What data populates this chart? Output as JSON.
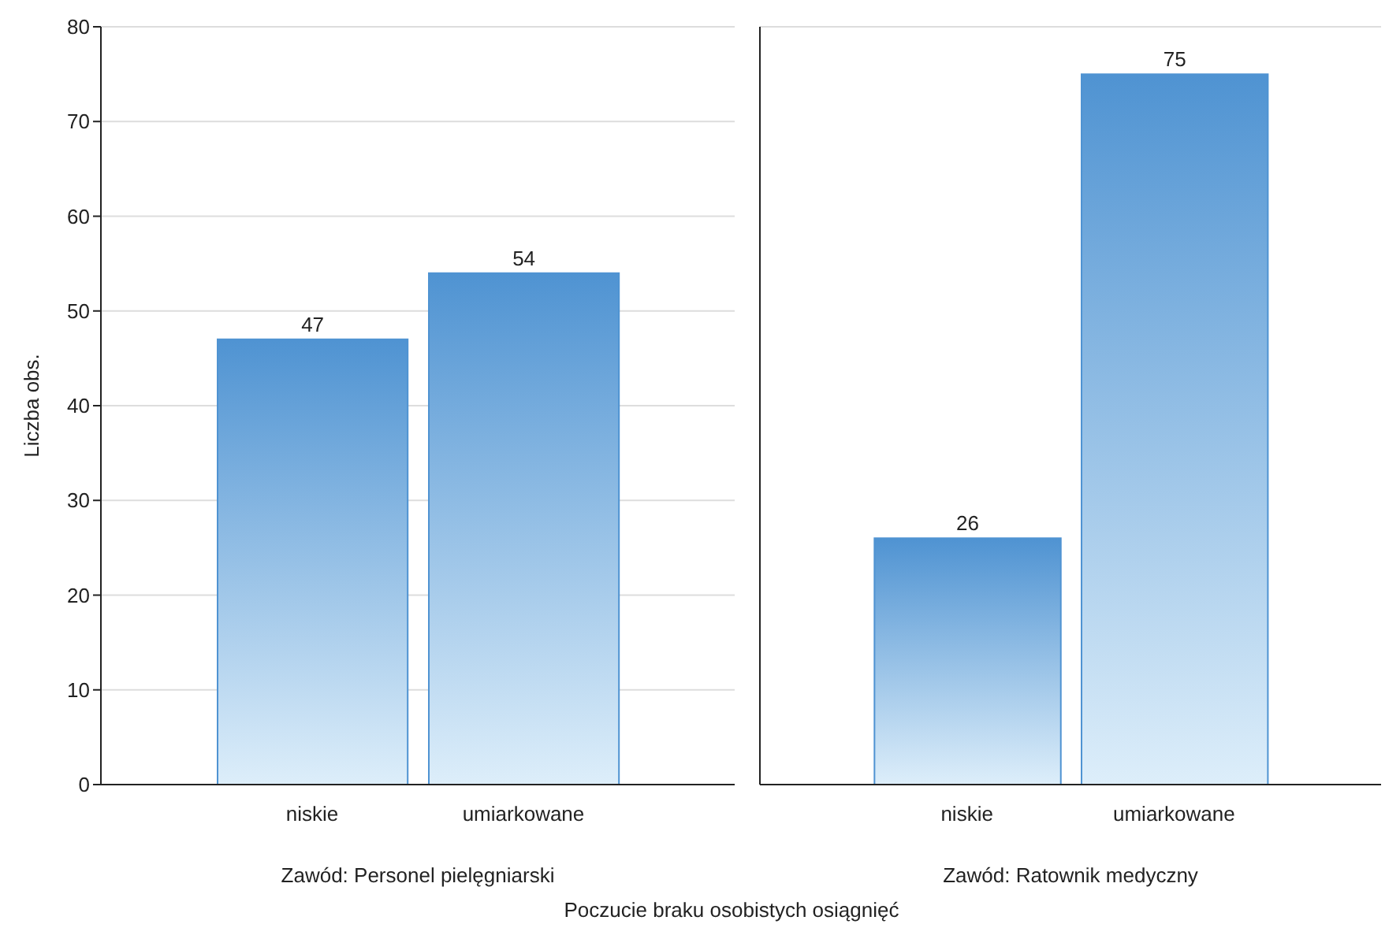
{
  "chart_data": [
    {
      "type": "bar",
      "categories": [
        "niskie",
        "umiarkowane"
      ],
      "values": [
        47,
        54
      ],
      "color": "#4f93d2",
      "ylim": [
        0,
        80
      ],
      "yticks": [
        0,
        10,
        20,
        30,
        40,
        50,
        60,
        70,
        80
      ],
      "ylabel": "Liczba obs.",
      "xlabel": "Zawód: Personel pielęgniarski",
      "data_labels": true,
      "grid": "y",
      "annotations": [
        "Poczucie braku osobistych osiągnięć"
      ]
    },
    {
      "type": "bar",
      "categories": [
        "niskie",
        "umiarkowane"
      ],
      "values": [
        26,
        75
      ],
      "color": "#4f93d2",
      "ylim": [
        0,
        80
      ],
      "yticks": [
        0,
        10,
        20,
        30,
        40,
        50,
        60,
        70,
        80
      ],
      "xlabel": "Zawód: Ratownik medyczny",
      "data_labels": true,
      "grid": "y",
      "tick_labels": "x"
    }
  ]
}
